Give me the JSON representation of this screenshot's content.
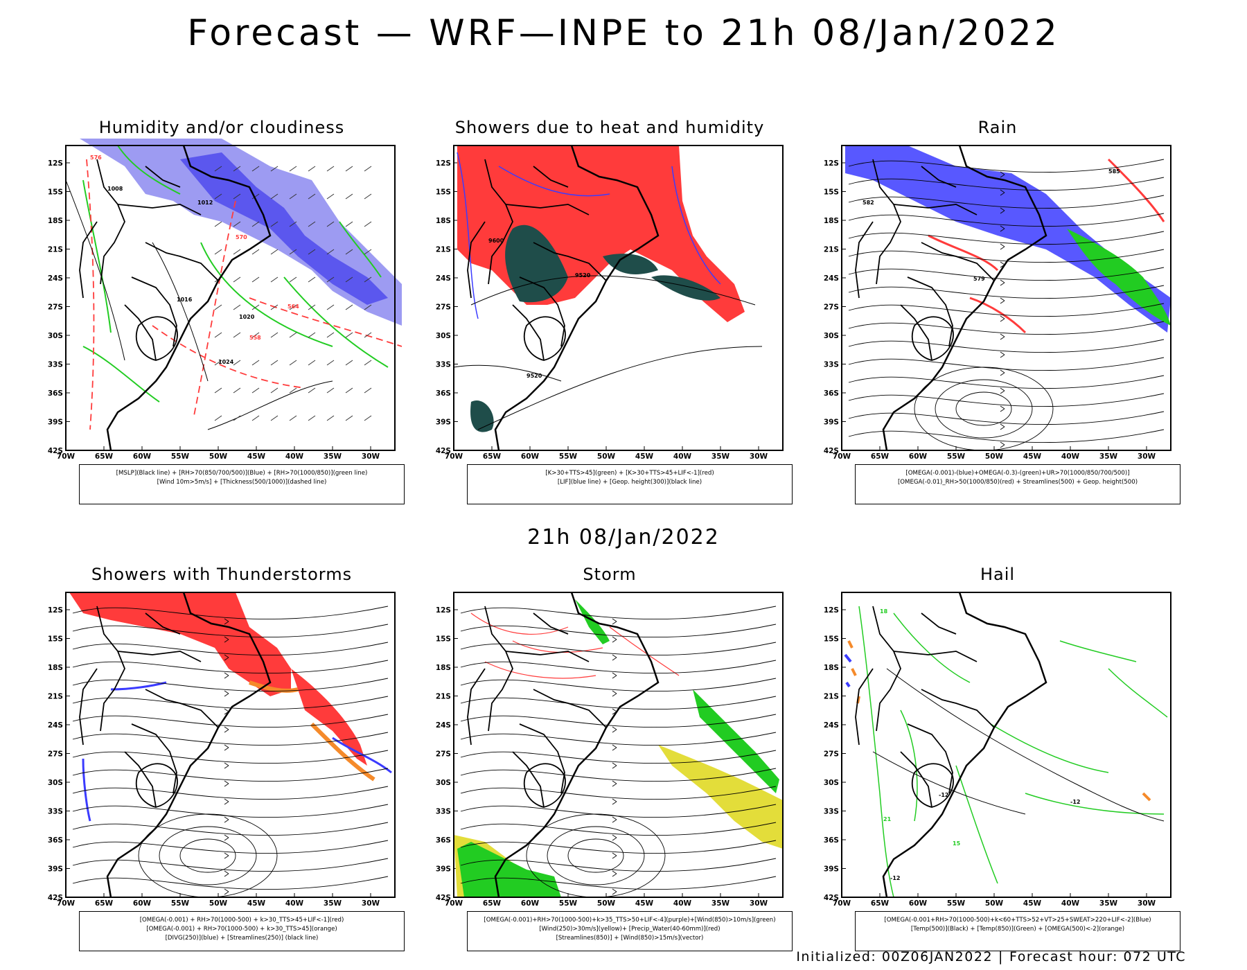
{
  "page": {
    "title": "Forecast — WRF—INPE to 21h 08/Jan/2022",
    "subtitle": "21h 08/Jan/2022",
    "footer": {
      "initialized": "Initialized: 00Z06JAN2022",
      "separator": "|",
      "forecast_hour": "Forecast hour: 072 UTC"
    }
  },
  "axes": {
    "lat_labels": [
      "12S",
      "15S",
      "18S",
      "21S",
      "24S",
      "27S",
      "30S",
      "33S",
      "36S",
      "39S",
      "42S"
    ],
    "lon_labels": [
      "70W",
      "65W",
      "60W",
      "55W",
      "50W",
      "45W",
      "40W",
      "35W",
      "30W"
    ]
  },
  "colors": {
    "blue": "#3b3bff",
    "light_blue": "#9d9bf2",
    "green": "#22cc22",
    "red": "#ff3b3b",
    "dark_teal": "#1f4d4a",
    "orange": "#f58a2a",
    "yellow": "#e3dd3a",
    "purple": "#b020c0"
  },
  "panels": [
    {
      "title": "Humidity and/or cloudiness",
      "legend": [
        "[MSLP](Black line) + [RH>70(850/700/500)](Blue) + [RH>70(1000/850)](green line)",
        "[Wind 10m>5m/s] + [Thickness(500/1000)](dashed line)"
      ],
      "contour_labels": [
        "1008",
        "1012",
        "1016",
        "1020",
        "1024",
        "576",
        "570",
        "564",
        "558"
      ]
    },
    {
      "title": "Showers due to heat and humidity",
      "legend": [
        "[K>30+TTS>45](green) + [K>30+TTS>45+LIF<-1](red)",
        "[LIF](blue line) + [Geop. height(300)](black line)"
      ],
      "contour_labels": [
        "9600",
        "9520"
      ]
    },
    {
      "title": "Rain",
      "legend": [
        "[OMEGA(-0.001)-(blue)+OMEGA(-0.3)-(green)+UR>70(1000/850/700/500)]",
        "[OMEGA(-0.01)_RH>50(1000/850)(red) + Streamlines(500) + Geop. height(500)"
      ],
      "contour_labels": [
        "582",
        "579",
        "585"
      ]
    },
    {
      "title": "Showers with Thunderstorms",
      "legend": [
        "[OMEGA(-0.001) + RH>70(1000-500) + k>30_TTS>45+LIF<-1](red)",
        "[OMEGA(-0.001) + RH>70(1000-500) + k>30_TTS>45](orange)",
        "[DIVG(250)](blue) + [Streamlines(250)] (black line)"
      ],
      "contour_labels": []
    },
    {
      "title": "Storm",
      "legend": [
        "[OMEGA(-0.001)+RH>70(1000-500)+k>35_TTS>50+LIF<-4](purple)+[Wind(850)>10m/s](green)",
        "[Wind(250)>30m/s](yellow)+ [Precip_Water(40-60mm)](red)",
        "[Streamlines(850)] + [Wind(850)>15m/s](vector)"
      ],
      "contour_labels": []
    },
    {
      "title": "Hail",
      "legend": [
        "[OMEGA(-0.001+RH>70(1000-500)+k<60+TTS>52+VT>25+SWEAT>220+LIF<-2](Blue)",
        "[Temp(500)](Black) + [Temp(850)](Green) + [OMEGA(500)<-2](orange)"
      ],
      "contour_labels": [
        "-12",
        "18",
        "21",
        "15"
      ]
    }
  ]
}
